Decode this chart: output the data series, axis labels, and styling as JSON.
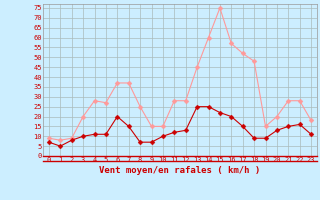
{
  "xlabel": "Vent moyen/en rafales ( km/h )",
  "xlabel_color": "#cc0000",
  "background_color": "#cceeff",
  "grid_color": "#aabbbb",
  "hours": [
    0,
    1,
    2,
    3,
    4,
    5,
    6,
    7,
    8,
    9,
    10,
    11,
    12,
    13,
    14,
    15,
    16,
    17,
    18,
    19,
    20,
    21,
    22,
    23
  ],
  "wind_avg": [
    7,
    5,
    8,
    10,
    11,
    11,
    20,
    15,
    7,
    7,
    10,
    12,
    13,
    25,
    25,
    22,
    20,
    15,
    9,
    9,
    13,
    15,
    16,
    11
  ],
  "wind_gust": [
    9,
    8,
    9,
    20,
    28,
    27,
    37,
    37,
    25,
    15,
    15,
    28,
    28,
    45,
    60,
    75,
    57,
    52,
    48,
    15,
    20,
    28,
    28,
    18
  ],
  "avg_color": "#cc0000",
  "gust_color": "#ff9999",
  "ylim": [
    0,
    77
  ],
  "yticks": [
    0,
    5,
    10,
    15,
    20,
    25,
    30,
    35,
    40,
    45,
    50,
    55,
    60,
    65,
    70,
    75
  ],
  "xticks": [
    0,
    1,
    2,
    3,
    4,
    5,
    6,
    7,
    8,
    9,
    10,
    11,
    12,
    13,
    14,
    15,
    16,
    17,
    18,
    19,
    20,
    21,
    22,
    23
  ],
  "markersize": 2.5,
  "linewidth": 0.8
}
